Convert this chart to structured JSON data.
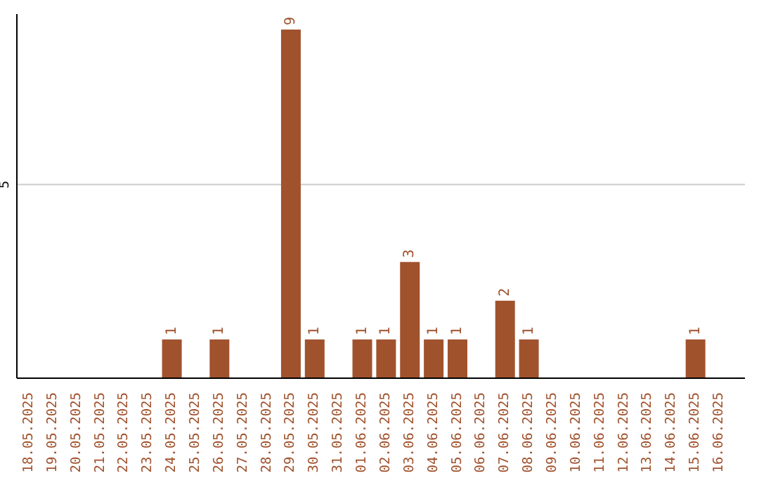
{
  "chart_data": {
    "type": "bar",
    "categories": [
      "18.05.2025",
      "19.05.2025",
      "20.05.2025",
      "21.05.2025",
      "22.05.2025",
      "23.05.2025",
      "24.05.2025",
      "25.05.2025",
      "26.05.2025",
      "27.05.2025",
      "28.05.2025",
      "29.05.2025",
      "30.05.2025",
      "31.05.2025",
      "01.06.2025",
      "02.06.2025",
      "03.06.2025",
      "04.06.2025",
      "05.06.2025",
      "06.06.2025",
      "07.06.2025",
      "08.06.2025",
      "09.06.2025",
      "10.06.2025",
      "11.06.2025",
      "12.06.2025",
      "13.06.2025",
      "14.06.2025",
      "15.06.2025",
      "16.06.2025"
    ],
    "values": [
      0,
      0,
      0,
      0,
      0,
      0,
      1,
      0,
      1,
      0,
      0,
      9,
      1,
      0,
      1,
      1,
      3,
      1,
      1,
      0,
      2,
      1,
      0,
      0,
      0,
      0,
      0,
      0,
      1,
      0
    ],
    "value_labels": [
      null,
      null,
      null,
      null,
      null,
      null,
      "1",
      null,
      "1",
      null,
      null,
      "9",
      "1",
      null,
      "1",
      "1",
      "3",
      "1",
      "1",
      null,
      "2",
      "1",
      null,
      null,
      null,
      null,
      null,
      null,
      "1",
      null
    ],
    "color": "#a0522d",
    "ylim": [
      0,
      9.4
    ],
    "yticks": [
      5
    ],
    "grid": "y"
  }
}
